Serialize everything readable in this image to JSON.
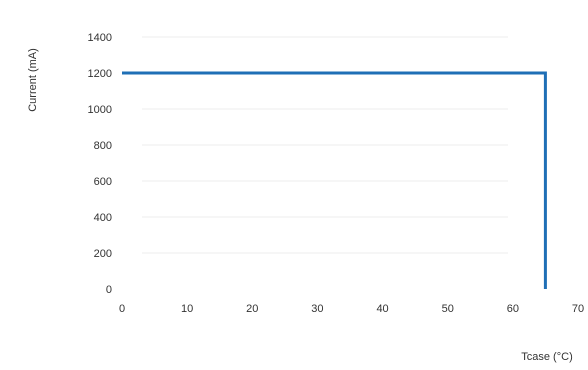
{
  "chart_data": {
    "type": "line",
    "xlabel": "Tcase (°C)",
    "ylabel": "Current (mA)",
    "xlim": [
      0,
      70
    ],
    "ylim": [
      0,
      1400
    ],
    "x_ticks": [
      0,
      10,
      20,
      30,
      40,
      50,
      60,
      70
    ],
    "y_ticks": [
      0,
      200,
      400,
      600,
      800,
      1000,
      1200,
      1400
    ],
    "grid": true,
    "series": [
      {
        "color": "#1f6fb6",
        "x": [
          0,
          65,
          65
        ],
        "y": [
          1200,
          1200,
          0
        ]
      }
    ]
  }
}
